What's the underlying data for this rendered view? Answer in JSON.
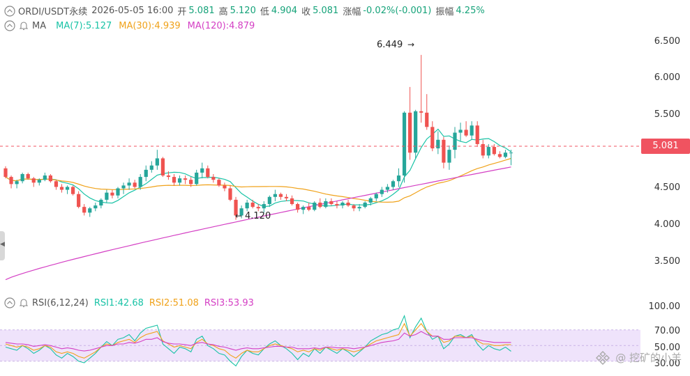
{
  "header": {
    "symbol": "ORDI/USDT永续",
    "datetime": "2026-05-05 16:00",
    "open_label": "开",
    "open": "5.081",
    "high_label": "高",
    "high": "5.120",
    "low_label": "低",
    "low": "4.904",
    "close_label": "收",
    "close": "5.081",
    "change_label": "涨幅",
    "change": "-0.02%(-0.001)",
    "amp_label": "振幅",
    "amp": "4.25%"
  },
  "ma": {
    "label": "MA",
    "ma7": "MA(7):5.127",
    "ma30": "MA(30):4.939",
    "ma120": "MA(120):4.879"
  },
  "rsi": {
    "label": "RSI(6,12,24)",
    "rsi1": "RSI1:42.68",
    "rsi2": "RSI2:51.08",
    "rsi3": "RSI3:53.93"
  },
  "price_axis": [
    "6.500",
    "6.000",
    "5.500",
    "4.500",
    "4.000",
    "3.500"
  ],
  "rsi_axis": [
    "100.00",
    "70.00",
    "50.00",
    "30.00"
  ],
  "current_price": "5.081",
  "annotations": {
    "high_mark": "6.449",
    "low_mark": "4.120"
  },
  "watermark": "@ 挖矿的小羊",
  "colors": {
    "up": "#26a69a",
    "down": "#ef5350",
    "ma7": "#19c3a6",
    "ma30": "#f0a21a",
    "ma120": "#d43fc4",
    "rsi_band": "#efe3fb"
  },
  "icons": [
    "eye-icon",
    "bell-icon"
  ],
  "chart_data": {
    "type": "candlestick",
    "ylim": [
      3.2,
      6.75
    ],
    "rsi_ylim": [
      20,
      100
    ],
    "candles": [
      [
        4.86,
        4.89,
        4.72,
        4.74
      ],
      [
        4.74,
        4.76,
        4.58,
        4.64
      ],
      [
        4.64,
        4.7,
        4.58,
        4.68
      ],
      [
        4.68,
        4.8,
        4.65,
        4.78
      ],
      [
        4.78,
        4.8,
        4.7,
        4.72
      ],
      [
        4.72,
        4.74,
        4.6,
        4.66
      ],
      [
        4.66,
        4.72,
        4.62,
        4.7
      ],
      [
        4.7,
        4.8,
        4.68,
        4.76
      ],
      [
        4.76,
        4.78,
        4.66,
        4.68
      ],
      [
        4.68,
        4.7,
        4.56,
        4.6
      ],
      [
        4.6,
        4.64,
        4.52,
        4.56
      ],
      [
        4.56,
        4.62,
        4.5,
        4.6
      ],
      [
        4.6,
        4.62,
        4.48,
        4.5
      ],
      [
        4.5,
        4.54,
        4.3,
        4.32
      ],
      [
        4.32,
        4.36,
        4.2,
        4.24
      ],
      [
        4.24,
        4.32,
        4.18,
        4.3
      ],
      [
        4.3,
        4.38,
        4.26,
        4.34
      ],
      [
        4.34,
        4.44,
        4.3,
        4.42
      ],
      [
        4.42,
        4.56,
        4.38,
        4.52
      ],
      [
        4.52,
        4.56,
        4.44,
        4.48
      ],
      [
        4.48,
        4.6,
        4.44,
        4.58
      ],
      [
        4.58,
        4.66,
        4.5,
        4.62
      ],
      [
        4.62,
        4.72,
        4.56,
        4.66
      ],
      [
        4.66,
        4.7,
        4.58,
        4.6
      ],
      [
        4.6,
        4.78,
        4.56,
        4.74
      ],
      [
        4.74,
        4.9,
        4.68,
        4.84
      ],
      [
        4.84,
        4.96,
        4.8,
        4.9
      ],
      [
        4.9,
        5.12,
        4.84,
        5.0
      ],
      [
        5.0,
        5.02,
        4.74,
        4.76
      ],
      [
        4.76,
        4.82,
        4.7,
        4.74
      ],
      [
        4.74,
        4.78,
        4.62,
        4.66
      ],
      [
        4.66,
        4.76,
        4.62,
        4.72
      ],
      [
        4.72,
        4.76,
        4.64,
        4.7
      ],
      [
        4.7,
        4.74,
        4.6,
        4.64
      ],
      [
        4.64,
        4.84,
        4.62,
        4.8
      ],
      [
        4.8,
        4.94,
        4.72,
        4.86
      ],
      [
        4.86,
        4.9,
        4.72,
        4.74
      ],
      [
        4.74,
        4.78,
        4.66,
        4.7
      ],
      [
        4.7,
        4.72,
        4.6,
        4.62
      ],
      [
        4.62,
        4.66,
        4.54,
        4.58
      ],
      [
        4.58,
        4.62,
        4.4,
        4.42
      ],
      [
        4.42,
        4.46,
        4.14,
        4.2
      ],
      [
        4.2,
        4.34,
        4.16,
        4.3
      ],
      [
        4.3,
        4.42,
        4.26,
        4.38
      ],
      [
        4.38,
        4.42,
        4.3,
        4.32
      ],
      [
        4.32,
        4.36,
        4.26,
        4.3
      ],
      [
        4.3,
        4.4,
        4.24,
        4.36
      ],
      [
        4.36,
        4.48,
        4.32,
        4.46
      ],
      [
        4.46,
        4.56,
        4.4,
        4.5
      ],
      [
        4.5,
        4.52,
        4.42,
        4.46
      ],
      [
        4.46,
        4.5,
        4.4,
        4.44
      ],
      [
        4.44,
        4.48,
        4.34,
        4.36
      ],
      [
        4.36,
        4.38,
        4.24,
        4.28
      ],
      [
        4.28,
        4.34,
        4.22,
        4.32
      ],
      [
        4.32,
        4.38,
        4.26,
        4.28
      ],
      [
        4.28,
        4.4,
        4.26,
        4.38
      ],
      [
        4.38,
        4.44,
        4.3,
        4.32
      ],
      [
        4.32,
        4.44,
        4.3,
        4.4
      ],
      [
        4.4,
        4.44,
        4.34,
        4.36
      ],
      [
        4.36,
        4.4,
        4.3,
        4.34
      ],
      [
        4.34,
        4.4,
        4.3,
        4.38
      ],
      [
        4.38,
        4.42,
        4.32,
        4.34
      ],
      [
        4.34,
        4.36,
        4.26,
        4.3
      ],
      [
        4.3,
        4.36,
        4.26,
        4.32
      ],
      [
        4.32,
        4.4,
        4.3,
        4.38
      ],
      [
        4.38,
        4.46,
        4.34,
        4.44
      ],
      [
        4.44,
        4.52,
        4.4,
        4.5
      ],
      [
        4.5,
        4.6,
        4.46,
        4.56
      ],
      [
        4.56,
        4.64,
        4.52,
        4.6
      ],
      [
        4.6,
        4.7,
        4.56,
        4.68
      ],
      [
        4.68,
        4.86,
        4.6,
        4.76
      ],
      [
        4.76,
        5.66,
        4.66,
        5.64
      ],
      [
        5.64,
        6.0,
        4.98,
        5.08
      ],
      [
        5.08,
        5.68,
        5.0,
        5.66
      ],
      [
        5.66,
        6.449,
        5.5,
        5.64
      ],
      [
        5.64,
        5.9,
        5.4,
        5.44
      ],
      [
        5.44,
        5.52,
        5.1,
        5.14
      ],
      [
        5.14,
        5.38,
        5.06,
        5.26
      ],
      [
        5.26,
        5.3,
        4.86,
        4.94
      ],
      [
        4.94,
        5.18,
        4.84,
        5.12
      ],
      [
        5.12,
        5.44,
        5.0,
        5.36
      ],
      [
        5.36,
        5.5,
        5.24,
        5.4
      ],
      [
        5.4,
        5.52,
        5.3,
        5.32
      ],
      [
        5.32,
        5.52,
        5.26,
        5.46
      ],
      [
        5.46,
        5.52,
        5.16,
        5.2
      ],
      [
        5.2,
        5.26,
        5.0,
        5.04
      ],
      [
        5.04,
        5.2,
        5.0,
        5.16
      ],
      [
        5.16,
        5.2,
        5.04,
        5.06
      ],
      [
        5.06,
        5.1,
        5.0,
        5.02
      ],
      [
        5.02,
        5.12,
        5.0,
        5.08
      ],
      [
        5.08,
        5.12,
        4.904,
        5.081
      ]
    ],
    "rsi1": [
      48,
      46,
      44,
      50,
      46,
      40,
      44,
      50,
      46,
      38,
      34,
      40,
      36,
      30,
      28,
      34,
      40,
      48,
      55,
      50,
      58,
      60,
      64,
      56,
      66,
      72,
      74,
      76,
      52,
      46,
      40,
      48,
      46,
      42,
      58,
      62,
      50,
      46,
      40,
      38,
      30,
      24,
      36,
      44,
      40,
      38,
      46,
      52,
      56,
      50,
      46,
      40,
      32,
      40,
      36,
      46,
      40,
      48,
      44,
      40,
      46,
      42,
      36,
      42,
      48,
      56,
      60,
      64,
      66,
      70,
      72,
      88,
      60,
      74,
      85,
      68,
      58,
      62,
      46,
      52,
      62,
      64,
      60,
      64,
      52,
      44,
      50,
      46,
      44,
      48,
      42.68
    ],
    "rsi2": [
      52,
      50,
      48,
      50,
      48,
      44,
      46,
      50,
      48,
      42,
      40,
      42,
      40,
      36,
      34,
      38,
      42,
      48,
      52,
      50,
      54,
      56,
      58,
      54,
      60,
      64,
      66,
      68,
      56,
      52,
      48,
      50,
      48,
      46,
      54,
      58,
      52,
      50,
      46,
      44,
      38,
      34,
      40,
      44,
      42,
      42,
      46,
      50,
      52,
      50,
      48,
      46,
      42,
      44,
      42,
      46,
      44,
      48,
      46,
      44,
      46,
      44,
      42,
      44,
      48,
      52,
      56,
      58,
      60,
      62,
      64,
      78,
      62,
      70,
      78,
      68,
      62,
      62,
      54,
      56,
      62,
      62,
      60,
      62,
      56,
      52,
      52,
      50,
      50,
      51,
      51.08
    ],
    "rsi3": [
      54,
      53,
      52,
      52,
      51,
      49,
      50,
      51,
      50,
      48,
      46,
      47,
      46,
      44,
      43,
      44,
      46,
      48,
      50,
      50,
      52,
      52,
      54,
      53,
      55,
      58,
      58,
      60,
      55,
      53,
      52,
      52,
      51,
      50,
      53,
      54,
      52,
      51,
      49,
      48,
      46,
      44,
      46,
      47,
      46,
      46,
      47,
      48,
      49,
      49,
      48,
      48,
      46,
      46,
      46,
      47,
      46,
      48,
      48,
      47,
      47,
      47,
      46,
      47,
      48,
      50,
      52,
      54,
      55,
      56,
      58,
      66,
      62,
      64,
      68,
      64,
      62,
      62,
      58,
      58,
      60,
      60,
      60,
      60,
      58,
      56,
      55,
      54,
      54,
      54,
      53.93
    ]
  }
}
